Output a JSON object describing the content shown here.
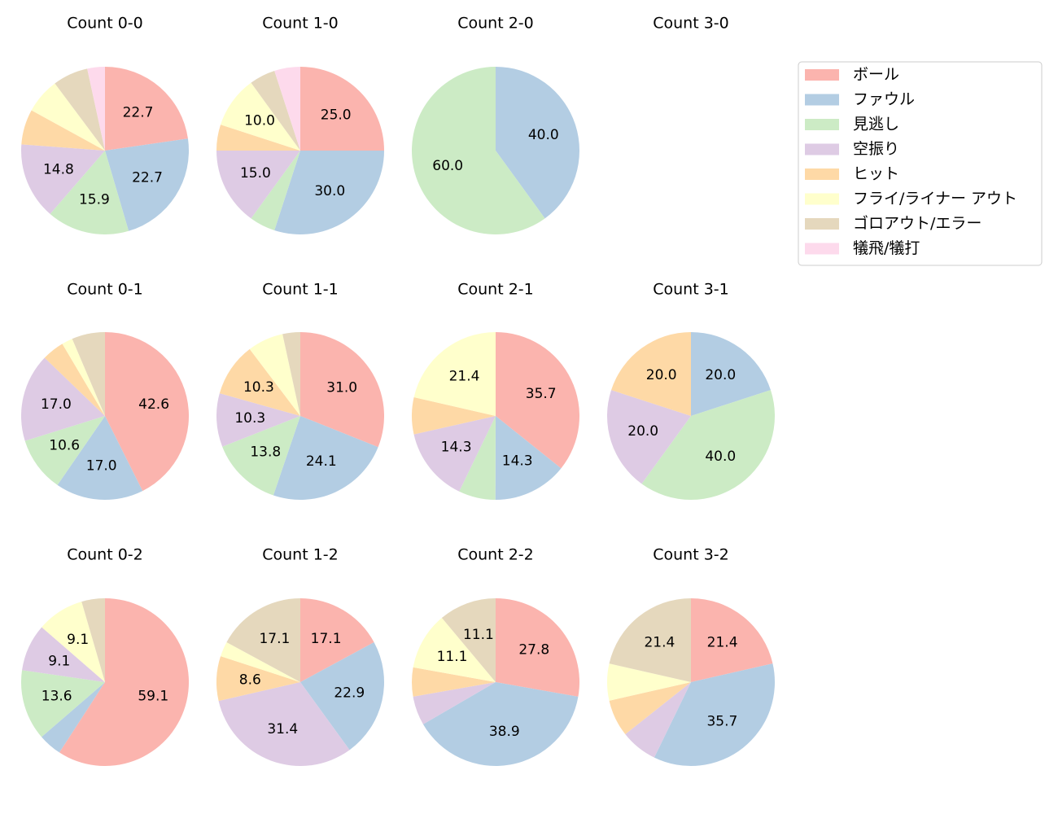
{
  "chart_data": {
    "type": "pie",
    "categories": [
      "ボール",
      "ファウル",
      "見逃し",
      "空振り",
      "ヒット",
      "フライ/ライナー アウト",
      "ゴロアウト/エラー",
      "犠飛/犠打"
    ],
    "colors": [
      "#fbb4ae",
      "#b3cde3",
      "#ccebc5",
      "#decbe4",
      "#fed9a6",
      "#ffffcc",
      "#e5d8bd",
      "#fddaec"
    ],
    "legend_placement": "top-right",
    "pies": [
      {
        "title": "Count 0-0",
        "values": [
          22.7,
          22.7,
          15.9,
          14.8,
          6.8,
          6.8,
          6.8,
          3.4
        ],
        "labels": [
          "22.7",
          "22.7",
          "15.9",
          "14.8",
          "",
          "",
          "",
          ""
        ]
      },
      {
        "title": "Count 1-0",
        "values": [
          25.0,
          30.0,
          5.0,
          15.0,
          5.0,
          10.0,
          5.0,
          5.0
        ],
        "labels": [
          "25.0",
          "30.0",
          "",
          "15.0",
          "",
          "10.0",
          "",
          ""
        ]
      },
      {
        "title": "Count 2-0",
        "values": [
          0,
          40.0,
          60.0,
          0,
          0,
          0,
          0,
          0
        ],
        "labels": [
          "",
          "40.0",
          "60.0",
          "",
          "",
          "",
          "",
          ""
        ]
      },
      {
        "title": "Count 3-0",
        "values": [
          0,
          0,
          0,
          0,
          0,
          0,
          0,
          0
        ],
        "labels": [
          "",
          "",
          "",
          "",
          "",
          "",
          "",
          ""
        ]
      },
      {
        "title": "Count 0-1",
        "values": [
          42.6,
          17.0,
          10.6,
          17.0,
          4.3,
          2.1,
          6.4,
          0
        ],
        "labels": [
          "42.6",
          "17.0",
          "10.6",
          "17.0",
          "",
          "",
          "",
          ""
        ]
      },
      {
        "title": "Count 1-1",
        "values": [
          31.0,
          24.1,
          13.8,
          10.3,
          10.3,
          6.9,
          3.4,
          0
        ],
        "labels": [
          "31.0",
          "24.1",
          "13.8",
          "10.3",
          "10.3",
          "",
          "",
          ""
        ]
      },
      {
        "title": "Count 2-1",
        "values": [
          35.7,
          14.3,
          7.1,
          14.3,
          7.1,
          21.4,
          0,
          0
        ],
        "labels": [
          "35.7",
          "14.3",
          "",
          "14.3",
          "",
          "21.4",
          "",
          ""
        ]
      },
      {
        "title": "Count 3-1",
        "values": [
          0,
          20.0,
          40.0,
          20.0,
          20.0,
          0,
          0,
          0
        ],
        "labels": [
          "",
          "20.0",
          "40.0",
          "20.0",
          "20.0",
          "",
          "",
          ""
        ]
      },
      {
        "title": "Count 0-2",
        "values": [
          59.1,
          4.5,
          13.6,
          9.1,
          0,
          9.1,
          4.5,
          0
        ],
        "labels": [
          "59.1",
          "",
          "13.6",
          "9.1",
          "",
          "9.1",
          "",
          ""
        ]
      },
      {
        "title": "Count 1-2",
        "values": [
          17.1,
          22.9,
          0,
          31.4,
          8.6,
          2.9,
          17.1,
          0
        ],
        "labels": [
          "17.1",
          "22.9",
          "",
          "31.4",
          "8.6",
          "",
          "17.1",
          ""
        ]
      },
      {
        "title": "Count 2-2",
        "values": [
          27.8,
          38.9,
          0,
          5.6,
          5.6,
          11.1,
          11.1,
          0
        ],
        "labels": [
          "27.8",
          "38.9",
          "",
          "",
          "",
          "11.1",
          "11.1",
          ""
        ]
      },
      {
        "title": "Count 3-2",
        "values": [
          21.4,
          35.7,
          0,
          7.1,
          7.1,
          7.1,
          21.4,
          0
        ],
        "labels": [
          "21.4",
          "35.7",
          "",
          "",
          "",
          "",
          "21.4",
          ""
        ]
      }
    ]
  }
}
